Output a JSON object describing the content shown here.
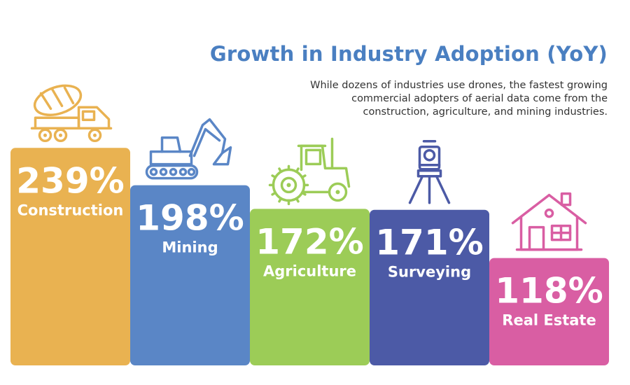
{
  "header": {
    "title": "Growth in Industry Adoption (YoY)",
    "subtitle": "While dozens of industries use drones, the fastest growing commercial adopters of aerial data come from the construction, agriculture, and mining industries."
  },
  "chart_data": {
    "type": "bar",
    "title": "Growth in Industry Adoption (YoY)",
    "subtitle": "While dozens of industries use drones, the fastest growing commercial adopters of aerial data come from the construction, agriculture, and mining industries.",
    "categories": [
      "Construction",
      "Mining",
      "Agriculture",
      "Surveying",
      "Real Estate"
    ],
    "values": [
      239,
      198,
      172,
      171,
      118
    ],
    "value_labels": [
      "239%",
      "198%",
      "172%",
      "171%",
      "118%"
    ],
    "colors": [
      "#e9b251",
      "#5a86c6",
      "#9ccc57",
      "#4c5aa6",
      "#d95ea3"
    ],
    "icons": [
      "cement-mixer-truck-icon",
      "excavator-icon",
      "tractor-icon",
      "surveying-total-station-icon",
      "house-icon"
    ],
    "grid": false,
    "legend": "none"
  }
}
